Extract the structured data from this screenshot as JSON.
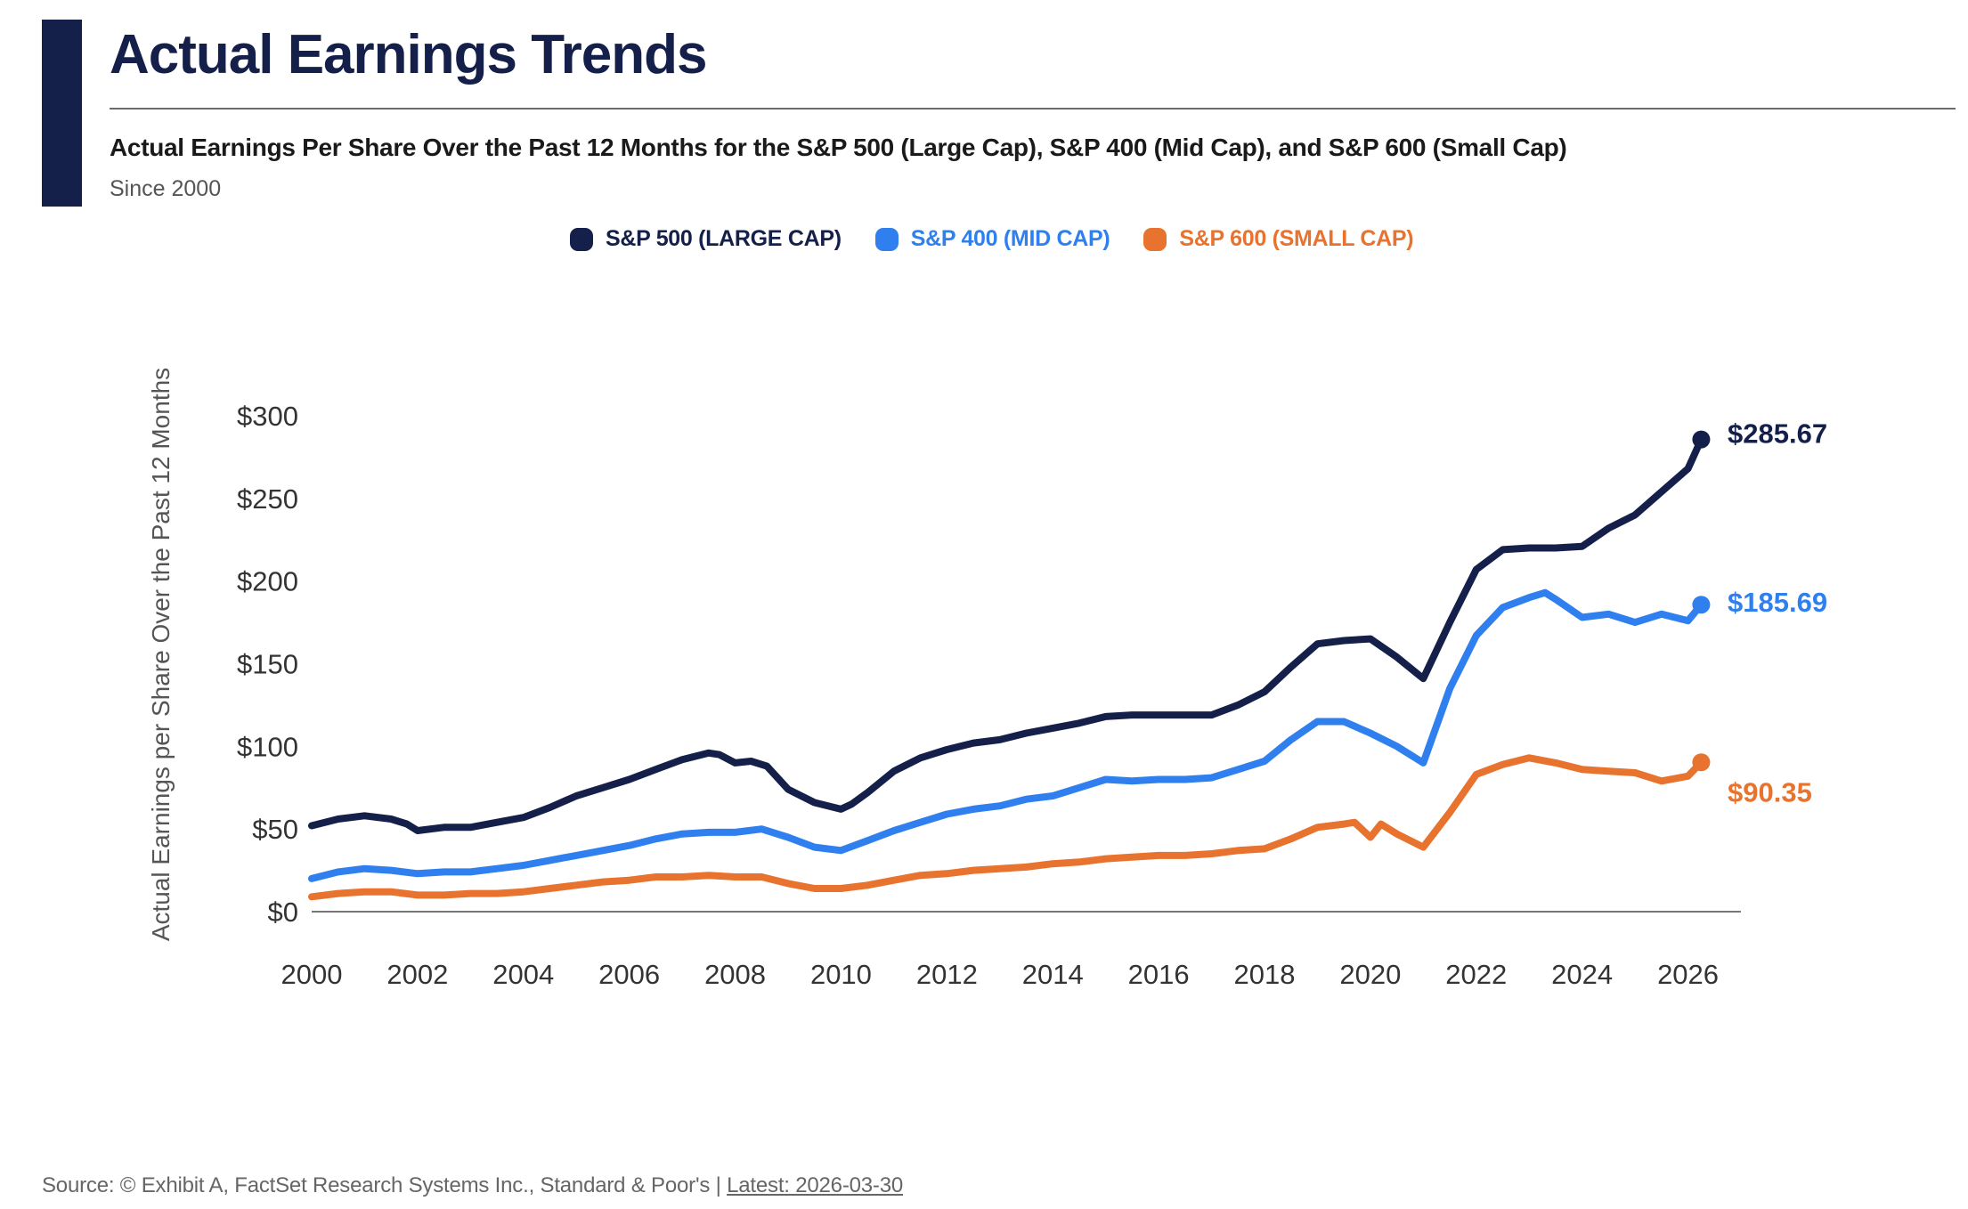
{
  "header": {
    "title": "Actual Earnings Trends",
    "subtitle": "Actual Earnings Per Share Over the Past 12 Months for the S&P 500 (Large Cap), S&P 400 (Mid Cap), and S&P 600 (Small Cap)",
    "since": "Since 2000"
  },
  "footer": {
    "source_text": "Source: © Exhibit A, FactSet Research Systems Inc., Standard & Poor's |",
    "latest": "Latest: 2026-03-30"
  },
  "colors": {
    "navy": "#141f4a",
    "large_cap": "#141f4a",
    "mid_cap": "#2f80ee",
    "small_cap": "#e8732e",
    "axis": "#555555"
  },
  "chart_data": {
    "type": "line",
    "title": "Actual Earnings Trends",
    "ylabel": "Actual Earnings per Share Over the Past 12 Months",
    "xlabel": "",
    "xlim": [
      2000,
      2027
    ],
    "ylim": [
      0,
      300
    ],
    "x_ticks": [
      2000,
      2002,
      2004,
      2006,
      2008,
      2010,
      2012,
      2014,
      2016,
      2018,
      2020,
      2022,
      2024,
      2026
    ],
    "y_ticks": [
      {
        "value": 0,
        "label": "$0"
      },
      {
        "value": 50,
        "label": "$50"
      },
      {
        "value": 100,
        "label": "$100"
      },
      {
        "value": 150,
        "label": "$150"
      },
      {
        "value": 200,
        "label": "$200"
      },
      {
        "value": 250,
        "label": "$250"
      },
      {
        "value": 300,
        "label": "$300"
      }
    ],
    "legend_position": "top-center",
    "series": [
      {
        "name": "S&P 500 (LARGE CAP)",
        "color": "#141f4a",
        "end_label": "$285.67",
        "x": [
          2000,
          2000.5,
          2001,
          2001.5,
          2001.8,
          2002,
          2002.5,
          2003,
          2003.5,
          2004,
          2004.5,
          2005,
          2005.5,
          2006,
          2006.5,
          2007,
          2007.5,
          2007.7,
          2008,
          2008.3,
          2008.6,
          2009,
          2009.5,
          2010,
          2010.2,
          2010.5,
          2011,
          2011.5,
          2012,
          2012.5,
          2013,
          2013.5,
          2014,
          2014.5,
          2015,
          2015.5,
          2016,
          2016.5,
          2017,
          2017.5,
          2018,
          2018.5,
          2019,
          2019.5,
          2020,
          2020.5,
          2021,
          2021.5,
          2022,
          2022.5,
          2023,
          2023.5,
          2024,
          2024.5,
          2025,
          2025.5,
          2026,
          2026.25
        ],
        "values": [
          52,
          56,
          58,
          56,
          53,
          49,
          51,
          51,
          54,
          57,
          63,
          70,
          75,
          80,
          86,
          92,
          96,
          95,
          90,
          91,
          88,
          74,
          66,
          62,
          65,
          72,
          85,
          93,
          98,
          102,
          104,
          108,
          111,
          114,
          118,
          119,
          119,
          119,
          119,
          125,
          133,
          148,
          162,
          164,
          165,
          154,
          141,
          175,
          207,
          219,
          220,
          220,
          221,
          232,
          240,
          254,
          268,
          285.67
        ]
      },
      {
        "name": "S&P 400 (MID CAP)",
        "color": "#2f80ee",
        "end_label": "$185.69",
        "x": [
          2000,
          2000.5,
          2001,
          2001.5,
          2002,
          2002.5,
          2003,
          2003.5,
          2004,
          2004.5,
          2005,
          2005.5,
          2006,
          2006.5,
          2007,
          2007.5,
          2008,
          2008.5,
          2009,
          2009.5,
          2010,
          2010.5,
          2011,
          2011.5,
          2012,
          2012.5,
          2013,
          2013.5,
          2014,
          2014.5,
          2015,
          2015.5,
          2016,
          2016.5,
          2017,
          2017.5,
          2018,
          2018.5,
          2019,
          2019.5,
          2020,
          2020.5,
          2021,
          2021.5,
          2022,
          2022.5,
          2023,
          2023.3,
          2023.5,
          2024,
          2024.5,
          2025,
          2025.5,
          2026,
          2026.25
        ],
        "values": [
          20,
          24,
          26,
          25,
          23,
          24,
          24,
          26,
          28,
          31,
          34,
          37,
          40,
          44,
          47,
          48,
          48,
          50,
          45,
          39,
          37,
          43,
          49,
          54,
          59,
          62,
          64,
          68,
          70,
          75,
          80,
          79,
          80,
          80,
          81,
          86,
          91,
          104,
          115,
          115,
          108,
          100,
          90,
          135,
          167,
          184,
          190,
          193,
          189,
          178,
          180,
          175,
          180,
          176,
          185.69
        ]
      },
      {
        "name": "S&P 600 (SMALL CAP)",
        "color": "#e8732e",
        "end_label": "$90.35",
        "x": [
          2000,
          2000.5,
          2001,
          2001.5,
          2002,
          2002.5,
          2003,
          2003.5,
          2004,
          2004.5,
          2005,
          2005.5,
          2006,
          2006.5,
          2007,
          2007.5,
          2008,
          2008.5,
          2009,
          2009.5,
          2010,
          2010.5,
          2011,
          2011.5,
          2012,
          2012.5,
          2013,
          2013.5,
          2014,
          2014.5,
          2015,
          2015.5,
          2016,
          2016.5,
          2017,
          2017.5,
          2018,
          2018.5,
          2019,
          2019.5,
          2019.7,
          2020,
          2020.2,
          2020.5,
          2021,
          2021.5,
          2022,
          2022.5,
          2023,
          2023.5,
          2024,
          2024.5,
          2025,
          2025.5,
          2026,
          2026.25
        ],
        "values": [
          9,
          11,
          12,
          12,
          10,
          10,
          11,
          11,
          12,
          14,
          16,
          18,
          19,
          21,
          21,
          22,
          21,
          21,
          17,
          14,
          14,
          16,
          19,
          22,
          23,
          25,
          26,
          27,
          29,
          30,
          32,
          33,
          34,
          34,
          35,
          37,
          38,
          44,
          51,
          53,
          54,
          45,
          53,
          47,
          39,
          60,
          83,
          89,
          93,
          90,
          86,
          85,
          84,
          79,
          82,
          90.35
        ]
      }
    ]
  }
}
